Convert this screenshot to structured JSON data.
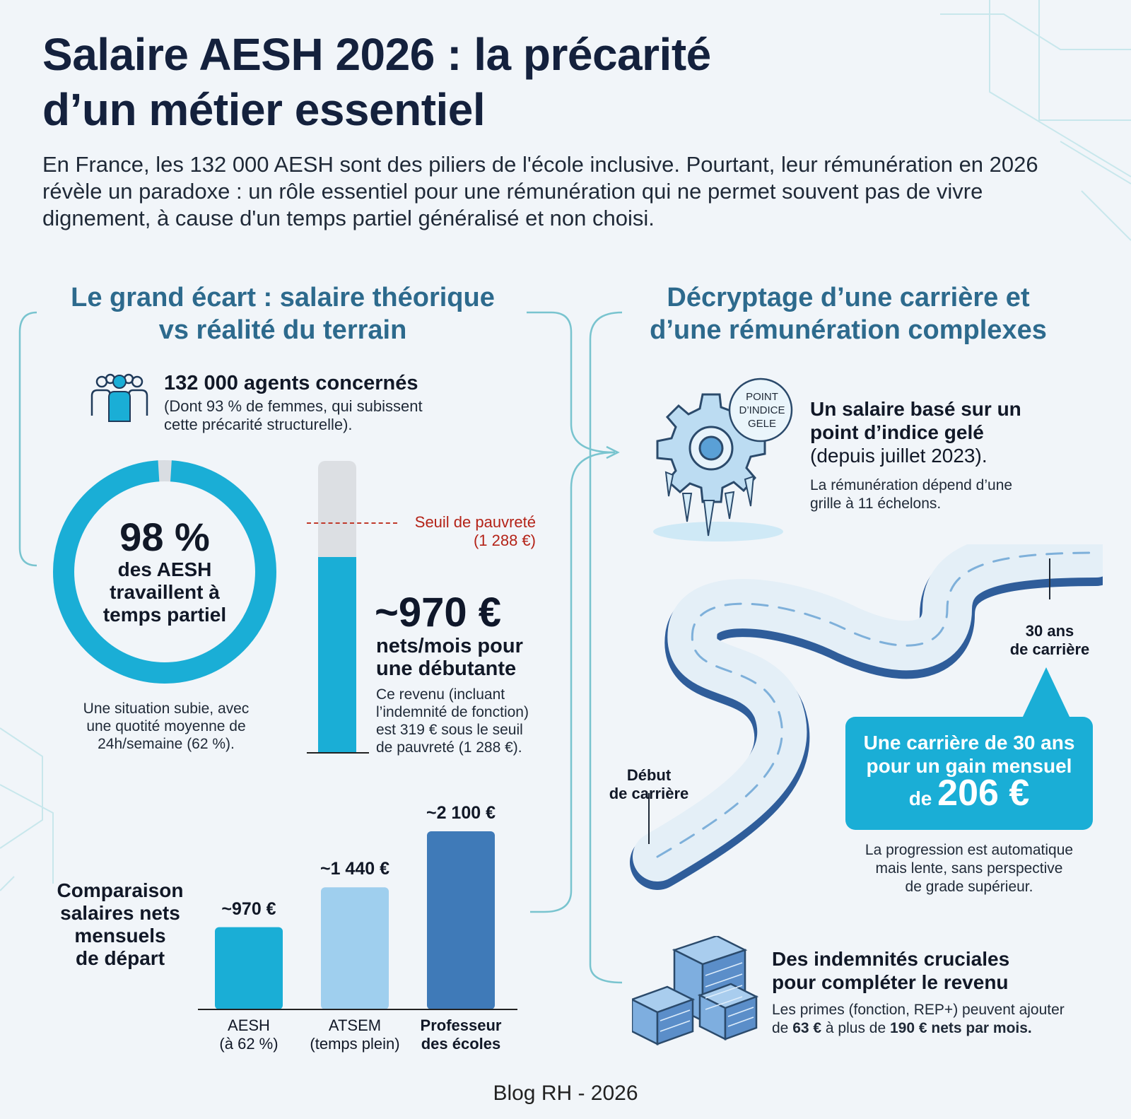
{
  "title": {
    "line1": "Salaire AESH 2026 : la précarité",
    "line2": "d’un métier essentiel"
  },
  "intro": "En France, les 132 000 AESH sont des piliers de l'école inclusive. Pourtant, leur rémunération en 2026 révèle un paradoxe : un rôle essentiel pour une rémunération qui ne permet souvent pas de vivre dignement, à cause d'un temps partiel généralisé et non choisi.",
  "left": {
    "section_title": {
      "line1": "Le grand écart : salaire théorique",
      "line2": "vs réalité du terrain"
    },
    "agents": {
      "icon": "people-group-icon",
      "title": "132 000 agents concernés",
      "sub_line1": "(Dont 93 % de femmes, qui subissent",
      "sub_line2": "cette précarité structurelle)."
    },
    "donut": {
      "percent": 98,
      "percent_label": "98 %",
      "label_line1": "des AESH",
      "label_line2": "travaillent à",
      "label_line3": "temps partiel",
      "caption_line1": "Une situation subie, avec",
      "caption_line2": "une quotité moyenne de",
      "caption_line3": "24h/semaine (62 %).",
      "color": "#1aaed6",
      "rest_color": "#d9dde2"
    },
    "gauge": {
      "value": 970,
      "threshold": 1288,
      "fill_fraction": 0.67,
      "threshold_fraction": 0.79,
      "threshold_label_line1": "Seuil de pauvreté",
      "threshold_label_line2": "(1 288 €)",
      "amount": "~970 €",
      "amount_sub_line1": "nets/mois pour",
      "amount_sub_line2": "une débutante",
      "desc_line1": "Ce revenu (incluant",
      "desc_line2": "l’indemnité de fonction)",
      "desc_line3": "est 319 € sous le seuil",
      "desc_line4": "de pauvreté (1 288 €).",
      "fill_color": "#1aaed6",
      "track_color": "#dcdfe3",
      "threshold_color": "#c0392b"
    },
    "comparison": {
      "title_line1": "Comparaison",
      "title_line2": "salaires nets",
      "title_line3": "mensuels",
      "title_line4": "de départ"
    }
  },
  "chart_data": {
    "type": "bar",
    "title": "Comparaison salaires nets mensuels de départ",
    "categories": [
      "AESH (à 62 %)",
      "ATSEM (temps plein)",
      "Professeur des écoles"
    ],
    "values": [
      970,
      1440,
      2100
    ],
    "value_labels": [
      "~970 €",
      "~1 440 €",
      "~2 100 €"
    ],
    "cat_line1": [
      "AESH",
      "ATSEM",
      "Professeur"
    ],
    "cat_line2": [
      "(à 62 %)",
      "(temps plein)",
      "des écoles"
    ],
    "colors": [
      "#1aaed6",
      "#9fcfee",
      "#3f7ab8"
    ],
    "ylim": [
      0,
      2100
    ]
  },
  "right": {
    "section_title": {
      "line1": "Décryptage d’une carrière et",
      "line2": "d’une rémunération complexes"
    },
    "gear": {
      "icon": "frozen-gear-icon",
      "badge_line1": "POINT",
      "badge_line2": "D’INDICE",
      "badge_line3": "GELE",
      "title_line1": "Un salaire basé sur un",
      "title_line2": "point d’indice gelé",
      "title_line3": "(depuis juillet 2023).",
      "desc_line1": "La rémunération dépend d’une",
      "desc_line2": "grille à 11 échelons."
    },
    "road": {
      "icon": "winding-road-icon",
      "start_line1": "Début",
      "start_line2": "de carrière",
      "end_line1": "30 ans",
      "end_line2": "de carrière",
      "callout_line1": "Une carrière de 30 ans",
      "callout_line2": "pour un gain mensuel",
      "callout_prefix": "de",
      "callout_amount": "206 €",
      "desc_line1": "La progression est automatique",
      "desc_line2": "mais lente, sans perspective",
      "desc_line3": "de grade supérieur."
    },
    "bonus": {
      "icon": "money-stacks-icon",
      "title_line1": "Des indemnités cruciales",
      "title_line2": "pour compléter le revenu",
      "desc_line1": "Les primes (fonction, REP+) peuvent ajouter",
      "desc_pre": "de ",
      "desc_bold1": "63 €",
      "desc_mid": " à plus de ",
      "desc_bold2": "190 € nets par mois."
    }
  },
  "footer": "Blog RH - 2026"
}
